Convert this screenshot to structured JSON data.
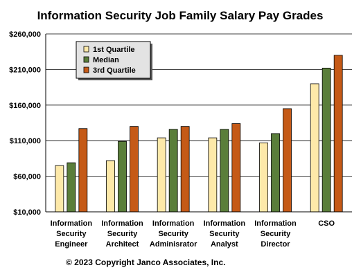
{
  "chart_data": {
    "type": "bar",
    "title": "Information Security Job Family Salary Pay Grades",
    "categories": [
      [
        "Information",
        "Security",
        "Engineer"
      ],
      [
        "Information",
        "Security",
        "Architect"
      ],
      [
        "Information",
        "Security",
        "Adminisrator"
      ],
      [
        "Information",
        "Security",
        "Analyst"
      ],
      [
        "Information",
        "Security",
        "Director"
      ],
      [
        "CSO"
      ]
    ],
    "series": [
      {
        "name": "1st Quartile",
        "color": "#fde9a9",
        "values": [
          75000,
          82000,
          114000,
          114000,
          107000,
          190000
        ]
      },
      {
        "name": "Median",
        "color": "#5a7e3a",
        "values": [
          79000,
          109000,
          126000,
          126000,
          120000,
          212000
        ]
      },
      {
        "name": "3rd Quartile",
        "color": "#c55a17",
        "values": [
          127000,
          130000,
          130000,
          134000,
          155000,
          230000
        ]
      }
    ],
    "yticks": [
      "$10,000",
      "$60,000",
      "$110,000",
      "$160,000",
      "$210,000",
      "$260,000"
    ],
    "ytick_values": [
      10000,
      60000,
      110000,
      160000,
      210000,
      260000
    ],
    "ylim": [
      10000,
      260000
    ],
    "grid": true,
    "legend_position": "top-left"
  },
  "footer": {
    "copyright": "© 2023 Copyright Janco Associates, Inc."
  }
}
